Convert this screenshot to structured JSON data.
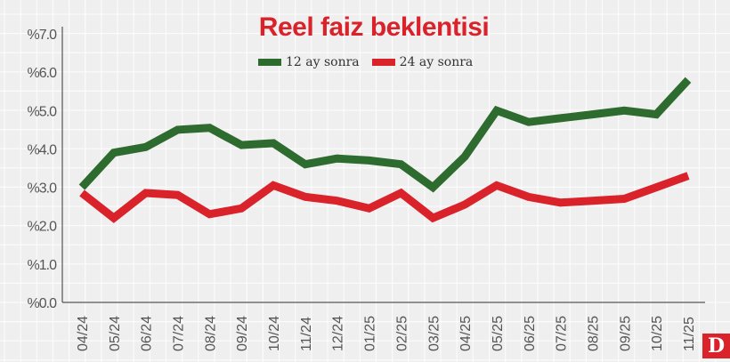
{
  "chart_data": {
    "type": "line",
    "title": "Reel faiz beklentisi",
    "xlabel": "",
    "ylabel": "",
    "ylim": [
      0,
      7
    ],
    "yticks": [
      "%0.0",
      "%1.0",
      "%2.0",
      "%3.0",
      "%4.0",
      "%5.0",
      "%6.0",
      "%7.0"
    ],
    "grid": true,
    "legend_position": "top-center",
    "categories": [
      "04/24",
      "05/24",
      "06/24",
      "07/24",
      "08/24",
      "09/24",
      "10/24",
      "11/24",
      "12/24",
      "01/25",
      "02/25",
      "03/25",
      "04/25",
      "05/25",
      "06/25",
      "07/25",
      "08/25",
      "09/25",
      "10/25",
      "11/25"
    ],
    "series": [
      {
        "name": "12 ay sonra",
        "color": "#2e6b2f",
        "values": [
          3.0,
          3.9,
          4.05,
          4.5,
          4.55,
          4.1,
          4.15,
          3.6,
          3.75,
          3.7,
          3.6,
          3.0,
          3.8,
          5.0,
          4.7,
          4.8,
          4.9,
          5.0,
          4.9,
          5.8
        ]
      },
      {
        "name": "24 ay sonra",
        "color": "#d9222a",
        "values": [
          2.85,
          2.2,
          2.85,
          2.8,
          2.3,
          2.45,
          3.05,
          2.75,
          2.65,
          2.45,
          2.85,
          2.2,
          2.55,
          3.05,
          2.75,
          2.6,
          2.65,
          2.7,
          3.0,
          3.3
        ]
      }
    ]
  },
  "title": "Reel faiz beklentisi",
  "legend": {
    "items": [
      {
        "label": "12 ay sonra",
        "color": "#2e6b2f"
      },
      {
        "label": "24 ay sonra",
        "color": "#d9222a"
      }
    ]
  },
  "logo": {
    "label": "D",
    "color": "#d9222a"
  }
}
